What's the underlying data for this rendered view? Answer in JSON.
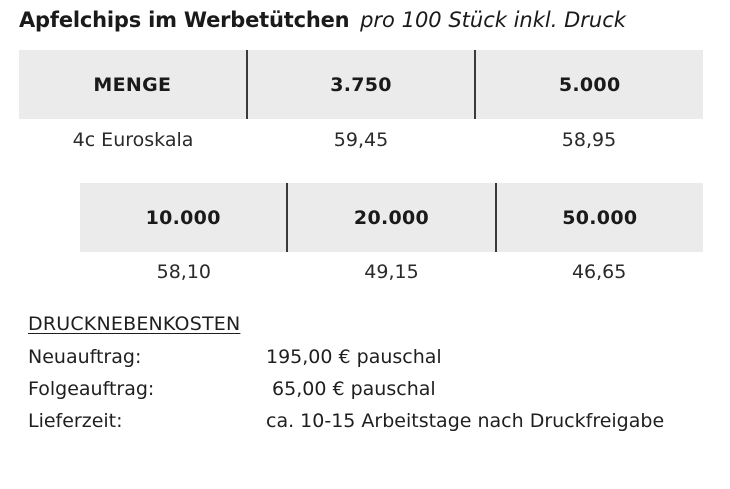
{
  "title": {
    "bold": "Apfelchips im Werbetütchen",
    "sub": "pro 100 Stück inkl. Druck"
  },
  "table1": {
    "headers": [
      "MENGE",
      "3.750",
      "5.000"
    ],
    "values": [
      "4c Euroskala",
      "59,45",
      "58,95"
    ]
  },
  "table2": {
    "headers": [
      "10.000",
      "20.000",
      "50.000"
    ],
    "values": [
      "58,10",
      "49,15",
      "46,65"
    ]
  },
  "costs": {
    "heading": "DRUCKNEBENKOSTEN",
    "rows": [
      {
        "label": "Neuauftrag:",
        "value": "195,00 € pauschal"
      },
      {
        "label": "Folgeauftrag:",
        "value": " 65,00 € pauschal"
      },
      {
        "label": "Lieferzeit:",
        "value": "ca. 10-15 Arbeitstage nach Druckfreigabe"
      }
    ]
  }
}
